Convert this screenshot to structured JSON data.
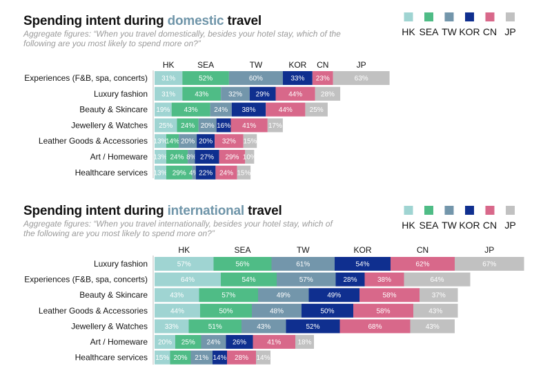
{
  "legend": {
    "items": [
      {
        "name": "HK",
        "color": "#9fd4d2"
      },
      {
        "name": "SEA",
        "color": "#4fbc86"
      },
      {
        "name": "TW",
        "color": "#7396ab"
      },
      {
        "name": "KOR",
        "color": "#0f2f8f"
      },
      {
        "name": "CN",
        "color": "#d8688a"
      },
      {
        "name": "JP",
        "color": "#c1c1c1"
      }
    ]
  },
  "chart_data": [
    {
      "type": "bar",
      "orientation": "horizontal",
      "stacked": true,
      "title_prefix": "Spending intent during ",
      "title_highlight": "domestic",
      "title_suffix": " travel",
      "subtitle": "Aggregate figures: “When you travel domestically, besides your hotel stay, which of the following are you most likely to spend more on?”",
      "column_headers": [
        "HK",
        "SEA",
        "TW",
        "KOR",
        "CN",
        "JP"
      ],
      "categories": [
        "Experiences (F&B, spa, concerts)",
        "Luxury fashion",
        "Beauty & Skincare",
        "Jewellery & Watches",
        "Leather Goods & Accessories",
        "Art / Homeware",
        "Healthcare services"
      ],
      "series": [
        {
          "name": "HK",
          "values": [
            31,
            31,
            19,
            25,
            13,
            13,
            13
          ]
        },
        {
          "name": "SEA",
          "values": [
            52,
            43,
            43,
            24,
            14,
            24,
            29
          ]
        },
        {
          "name": "TW",
          "values": [
            60,
            32,
            24,
            20,
            20,
            8,
            4
          ]
        },
        {
          "name": "KOR",
          "values": [
            33,
            29,
            38,
            16,
            20,
            27,
            22
          ]
        },
        {
          "name": "CN",
          "values": [
            23,
            44,
            44,
            41,
            32,
            29,
            24
          ]
        },
        {
          "name": "JP",
          "values": [
            63,
            28,
            25,
            17,
            15,
            10,
            15
          ]
        }
      ]
    },
    {
      "type": "bar",
      "orientation": "horizontal",
      "stacked": true,
      "title_prefix": "Spending intent during ",
      "title_highlight": "international",
      "title_suffix": " travel",
      "subtitle": "Aggregate figures: “When you travel internationally, besides your hotel stay, which of the following are you most likely to spend more on?”",
      "column_headers": [
        "HK",
        "SEA",
        "TW",
        "KOR",
        "CN",
        "JP"
      ],
      "categories": [
        "Luxury fashion",
        "Experiences (F&B, spa, concerts)",
        "Beauty & Skincare",
        "Leather Goods & Accessories",
        "Jewellery & Watches",
        "Art / Homeware",
        "Healthcare services"
      ],
      "series": [
        {
          "name": "HK",
          "values": [
            57,
            64,
            43,
            44,
            33,
            20,
            15
          ]
        },
        {
          "name": "SEA",
          "values": [
            56,
            54,
            57,
            50,
            51,
            25,
            20
          ]
        },
        {
          "name": "TW",
          "values": [
            61,
            57,
            49,
            48,
            43,
            24,
            21
          ]
        },
        {
          "name": "KOR",
          "values": [
            54,
            28,
            49,
            50,
            52,
            26,
            14
          ]
        },
        {
          "name": "CN",
          "values": [
            62,
            38,
            58,
            58,
            68,
            41,
            28
          ]
        },
        {
          "name": "JP",
          "values": [
            67,
            64,
            37,
            43,
            43,
            18,
            14
          ]
        }
      ]
    }
  ]
}
